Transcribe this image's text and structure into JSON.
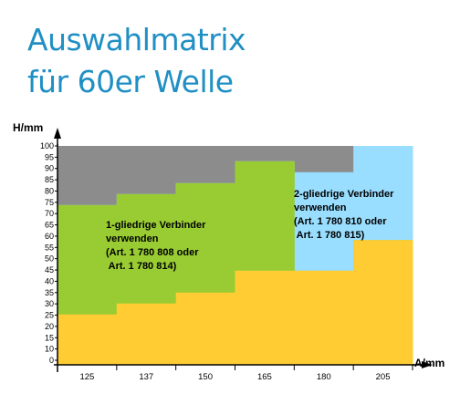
{
  "header": {
    "title_line1": "Auswahlmatrix",
    "title_line2": "für 60er Welle"
  },
  "chart_data": {
    "type": "area",
    "xlabel": "A/mm",
    "ylabel": "H/mm",
    "categories": [
      "125",
      "137",
      "150",
      "165",
      "180",
      "205"
    ],
    "yticks": [
      "0",
      "10",
      "15",
      "20",
      "25",
      "30",
      "35",
      "40",
      "45",
      "50",
      "55",
      "60",
      "65",
      "70",
      "75",
      "80",
      "85",
      "90",
      "95",
      "100"
    ],
    "ylim": [
      0,
      100
    ],
    "colors": {
      "yellow": "#ffcc33",
      "green": "#99cc33",
      "blue": "#99ddff",
      "gray": "#8c8c8c"
    },
    "regions": [
      {
        "name": "yellow",
        "color_key": "yellow",
        "upper": [
          23,
          28,
          33,
          43,
          43,
          57
        ]
      },
      {
        "name": "1-gliedrige",
        "color_key": "green",
        "upper": [
          73,
          78,
          83,
          93,
          43,
          57
        ]
      },
      {
        "name": "2-gliedrige",
        "color_key": "blue",
        "upper": [
          73,
          78,
          83,
          93,
          88,
          100
        ]
      },
      {
        "name": "gray",
        "color_key": "gray",
        "upper": [
          100,
          100,
          100,
          100,
          100,
          100
        ]
      }
    ],
    "annotations": [
      {
        "id": "green",
        "lines": [
          "1-gliedrige Verbinder",
          "verwenden",
          "(Art. 1 780 808 oder",
          " Art. 1 780 814)"
        ]
      },
      {
        "id": "blue",
        "lines": [
          "2-gliedrige Verbinder",
          "verwenden",
          "(Art. 1 780 810 oder",
          " Art. 1 780 815)"
        ]
      }
    ]
  }
}
